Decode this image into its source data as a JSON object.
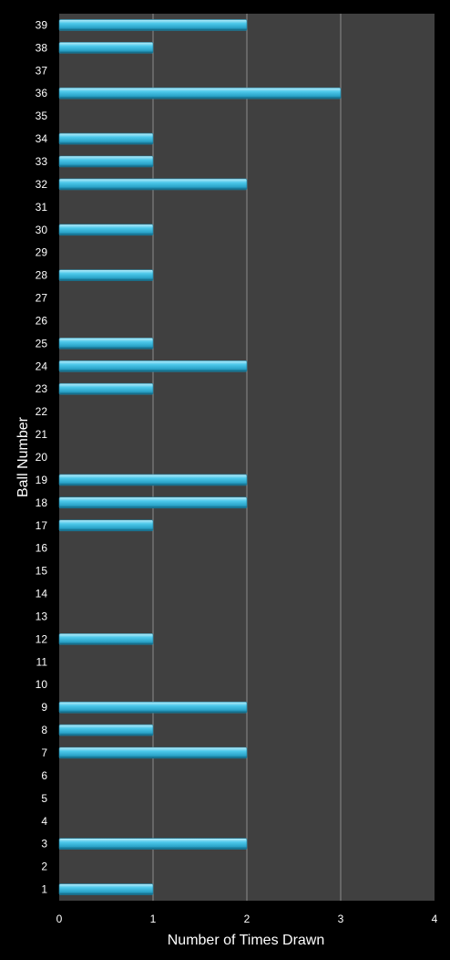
{
  "chart_data": {
    "type": "bar",
    "orientation": "horizontal",
    "ylabel": "Ball Number",
    "xlabel": "Number of Times Drawn",
    "xlim": [
      0,
      4
    ],
    "xticks": [
      "0",
      "1",
      "2",
      "3",
      "4"
    ],
    "grid": true,
    "categories": [
      "1",
      "2",
      "3",
      "4",
      "5",
      "6",
      "7",
      "8",
      "9",
      "10",
      "11",
      "12",
      "13",
      "14",
      "15",
      "16",
      "17",
      "18",
      "19",
      "20",
      "21",
      "22",
      "23",
      "24",
      "25",
      "26",
      "27",
      "28",
      "29",
      "30",
      "31",
      "32",
      "33",
      "34",
      "35",
      "36",
      "37",
      "38",
      "39"
    ],
    "values": [
      1,
      0,
      2,
      0,
      0,
      0,
      2,
      1,
      2,
      0,
      0,
      1,
      0,
      0,
      0,
      0,
      1,
      2,
      2,
      0,
      0,
      0,
      1,
      2,
      1,
      0,
      0,
      1,
      0,
      1,
      0,
      2,
      1,
      1,
      0,
      3,
      0,
      1,
      2
    ]
  },
  "colors": {
    "background": "#000000",
    "plot_area": "#404040",
    "gridline": "#8c8c8c",
    "bar": "#3cc0e4",
    "text": "#ffffff"
  }
}
